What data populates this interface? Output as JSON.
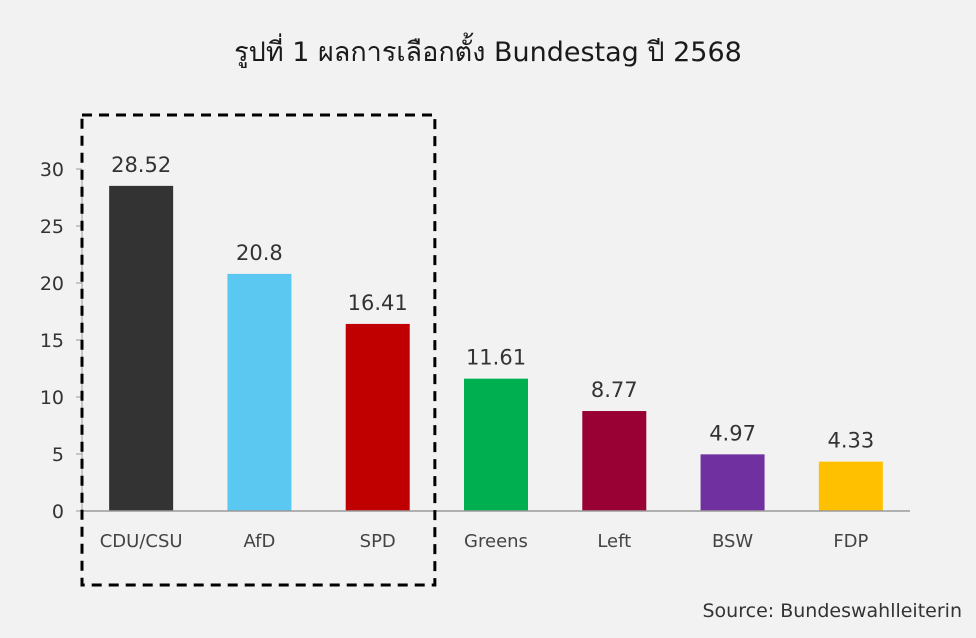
{
  "title": "รูปที่ 1 ผลการเลือกตั้ง Bundestag ปี 2568",
  "source": "Source: Bundeswahlleiterin",
  "chart_data": {
    "type": "bar",
    "title": "รูปที่ 1 ผลการเลือกตั้ง Bundestag ปี 2568",
    "xlabel": "",
    "ylabel": "",
    "categories": [
      "CDU/CSU",
      "AfD",
      "SPD",
      "Greens",
      "Left",
      "BSW",
      "FDP"
    ],
    "values": [
      28.52,
      20.8,
      16.41,
      11.61,
      8.77,
      4.97,
      4.33
    ],
    "data_labels": [
      "28.52",
      "20.8",
      "16.41",
      "11.61",
      "8.77",
      "4.97",
      "4.33"
    ],
    "colors": [
      "#333333",
      "#5bc8f2",
      "#c00000",
      "#00b050",
      "#990033",
      "#7030a0",
      "#ffc000"
    ],
    "yticks": [
      0,
      5,
      10,
      15,
      20,
      25,
      30
    ],
    "ylim": [
      0,
      30
    ],
    "grid": false,
    "legend": "none",
    "highlight": {
      "style": "dashed-box",
      "categories": [
        "CDU/CSU",
        "AfD",
        "SPD"
      ]
    }
  }
}
